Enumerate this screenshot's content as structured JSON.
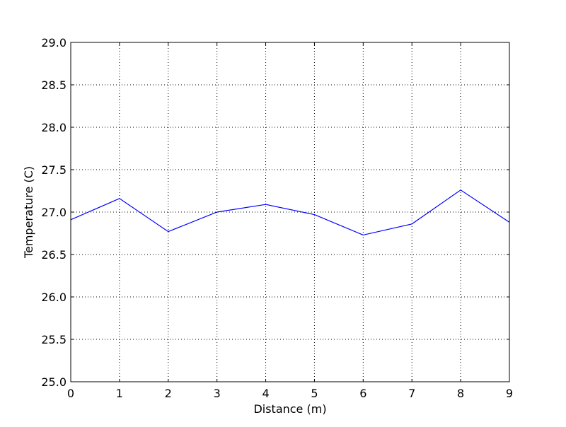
{
  "chart_data": {
    "type": "line",
    "title": "",
    "xlabel": "Distance (m)",
    "ylabel": "Temperature (C)",
    "xlim": [
      0,
      9
    ],
    "ylim": [
      25.0,
      29.0
    ],
    "grid": true,
    "grid_style": "dotted",
    "x_ticks": [
      0,
      1,
      2,
      3,
      4,
      5,
      6,
      7,
      8,
      9
    ],
    "x_tick_labels": [
      "0",
      "1",
      "2",
      "3",
      "4",
      "5",
      "6",
      "7",
      "8",
      "9"
    ],
    "y_ticks": [
      25.0,
      25.5,
      26.0,
      26.5,
      27.0,
      27.5,
      28.0,
      28.5,
      29.0
    ],
    "y_tick_labels": [
      "25.0",
      "25.5",
      "26.0",
      "26.5",
      "27.0",
      "27.5",
      "28.0",
      "28.5",
      "29.0"
    ],
    "x": [
      0,
      1,
      2,
      3,
      4,
      5,
      6,
      7,
      8,
      9
    ],
    "series": [
      {
        "values": [
          26.91,
          27.16,
          26.77,
          27.0,
          27.09,
          26.97,
          26.73,
          26.86,
          27.26,
          26.88
        ],
        "color": "#0000ff"
      }
    ]
  }
}
